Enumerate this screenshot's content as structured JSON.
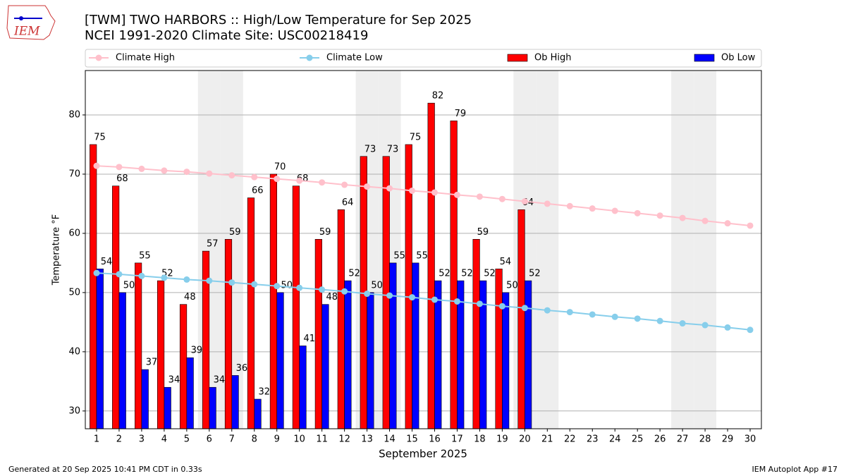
{
  "chart_data": {
    "type": "bar",
    "title": "[TWM] TWO HARBORS :: High/Low Temperature for Sep 2025",
    "subtitle": "NCEI 1991-2020 Climate Site: USC00218419",
    "xlabel": "September 2025",
    "ylabel": "Temperature °F",
    "categories": [
      "1",
      "2",
      "3",
      "4",
      "5",
      "6",
      "7",
      "8",
      "9",
      "10",
      "11",
      "12",
      "13",
      "14",
      "15",
      "16",
      "17",
      "18",
      "19",
      "20",
      "21",
      "22",
      "23",
      "24",
      "25",
      "26",
      "27",
      "28",
      "29",
      "30"
    ],
    "series": [
      {
        "name": "Climate High",
        "kind": "line",
        "color": "#ffc0cb",
        "values": [
          71.4,
          71.2,
          70.9,
          70.6,
          70.4,
          70.1,
          69.8,
          69.5,
          69.2,
          68.9,
          68.6,
          68.2,
          67.9,
          67.6,
          67.2,
          66.9,
          66.5,
          66.2,
          65.8,
          65.4,
          65.0,
          64.6,
          64.2,
          63.8,
          63.4,
          63.0,
          62.6,
          62.1,
          61.7,
          61.3
        ]
      },
      {
        "name": "Climate Low",
        "kind": "line",
        "color": "#87ceeb",
        "values": [
          53.3,
          53.1,
          52.8,
          52.5,
          52.2,
          52.0,
          51.7,
          51.4,
          51.1,
          50.8,
          50.5,
          50.2,
          49.8,
          49.5,
          49.2,
          48.8,
          48.5,
          48.1,
          47.7,
          47.4,
          47.0,
          46.7,
          46.3,
          45.9,
          45.6,
          45.2,
          44.8,
          44.5,
          44.1,
          43.7
        ]
      },
      {
        "name": "Ob High",
        "kind": "bar",
        "color": "#ff0000",
        "values": [
          75,
          68,
          55,
          52,
          48,
          57,
          59,
          66,
          70,
          68,
          59,
          64,
          73,
          73,
          75,
          82,
          79,
          59,
          54,
          64,
          null,
          null,
          null,
          null,
          null,
          null,
          null,
          null,
          null,
          null
        ]
      },
      {
        "name": "Ob Low",
        "kind": "bar",
        "color": "#0000ff",
        "values": [
          54,
          50,
          37,
          34,
          39,
          34,
          36,
          32,
          50,
          41,
          48,
          52,
          50,
          55,
          55,
          52,
          52,
          52,
          50,
          52,
          null,
          null,
          null,
          null,
          null,
          null,
          null,
          null,
          null,
          null
        ]
      }
    ],
    "shaded_days": [
      6,
      7,
      13,
      14,
      20,
      21,
      27,
      28
    ],
    "ylim": [
      27,
      87.5
    ],
    "yticks": [
      30,
      40,
      50,
      60,
      70,
      80
    ],
    "grid": true,
    "legend": "top",
    "footer_left": "Generated at 20 Sep 2025 10:41 PM CDT in 0.33s",
    "footer_right": "IEM Autoplot App #17",
    "logo_text": "IEM"
  }
}
